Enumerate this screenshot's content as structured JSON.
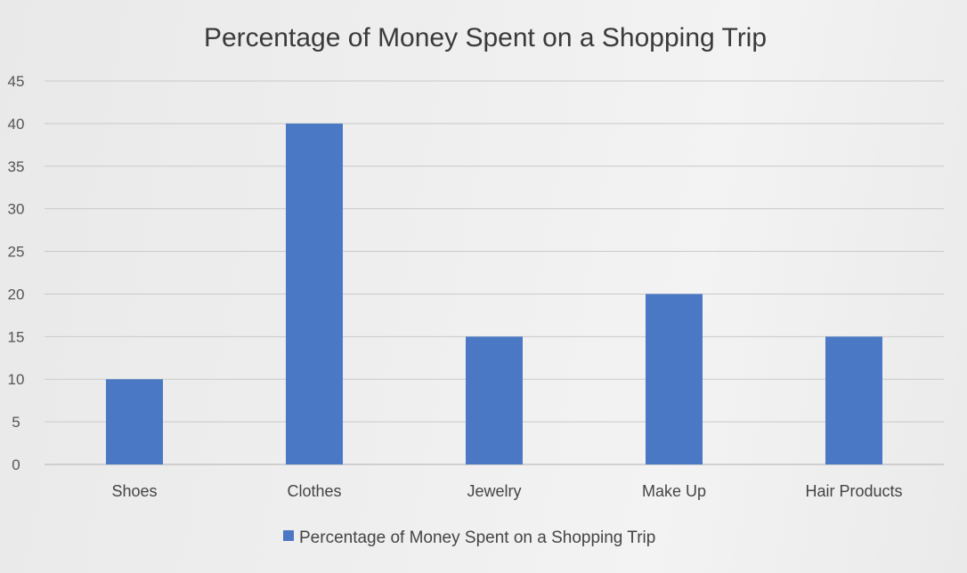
{
  "chart_data": {
    "type": "bar",
    "title": "Percentage of Money Spent on a Shopping Trip",
    "categories": [
      "Shoes",
      "Clothes",
      "Jewelry",
      "Make Up",
      "Hair Products"
    ],
    "series": [
      {
        "name": "Percentage of Money Spent on a Shopping Trip",
        "values": [
          10,
          40,
          15,
          20,
          15
        ],
        "color": "#4a78c4"
      }
    ],
    "ylim": [
      0,
      45
    ],
    "yticks": [
      "0",
      "5",
      "10",
      "15",
      "20",
      "25",
      "30",
      "35",
      "40",
      "45"
    ],
    "grid": true,
    "legend_position": "bottom"
  }
}
